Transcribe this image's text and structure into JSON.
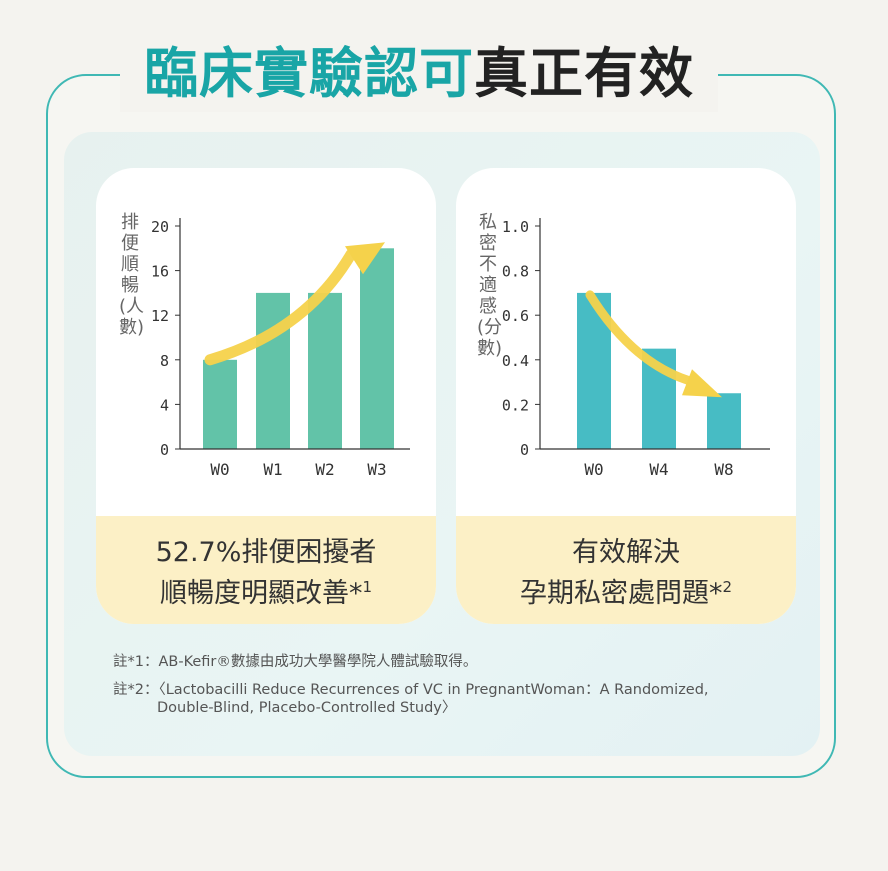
{
  "headline": {
    "part1": "臨床實驗認可",
    "part2": "真正有效"
  },
  "colors": {
    "teal": "#19a5a6",
    "green_bar": "#62c3a8",
    "blue_bar": "#47bcc4",
    "arrow": "#f5d24b",
    "caption_bg": "#fcf0c6",
    "frame": "#3fb8b4"
  },
  "chart_data": [
    {
      "type": "bar",
      "ylabel": "排便順暢(人數)",
      "xlabel": "",
      "categories": [
        "W0",
        "W1",
        "W2",
        "W3"
      ],
      "values": [
        8,
        14,
        14,
        18
      ],
      "ylim": [
        0,
        20
      ],
      "yticks": [
        "20",
        "16",
        "12",
        "8",
        "4",
        "0"
      ],
      "annotation": "upward-arrow"
    },
    {
      "type": "bar",
      "ylabel": "私密不適感(分數)",
      "xlabel": "",
      "categories": [
        "W0",
        "W4",
        "W8"
      ],
      "values": [
        0.7,
        0.45,
        0.25
      ],
      "ylim": [
        0,
        1.0
      ],
      "yticks": [
        "1.0",
        "0.8",
        "0.6",
        "0.4",
        "0.2",
        "0"
      ],
      "annotation": "downward-arrow"
    }
  ],
  "captions": {
    "left_line1": "52.7%排便困擾者",
    "left_line2": "順暢度明顯改善*",
    "left_sup": "1",
    "right_line1": "有效解決",
    "right_line2": "孕期私密處問題*",
    "right_sup": "2"
  },
  "notes": {
    "note1": "註*1：AB-Kefir®數據由成功大學醫學院人體試驗取得。",
    "note2_line1": "註*2：〈Lactobacilli Reduce Recurrences of VC in PregnantWoman：A Randomized,",
    "note2_line2": "Double-Blind, Placebo-Controlled Study〉"
  }
}
